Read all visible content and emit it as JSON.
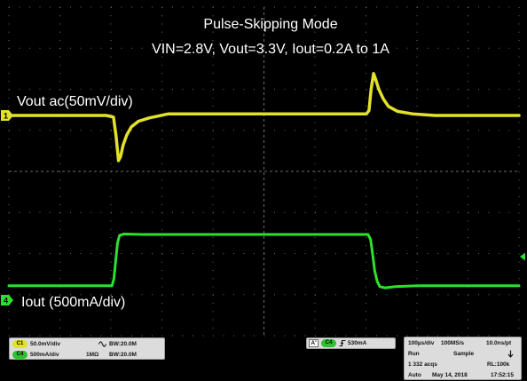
{
  "chart_data": {
    "type": "line",
    "title": "Pulse-Skipping Mode",
    "subtitle": "VIN=2.8V, Vout=3.3V, Iout=0.2A to 1A",
    "xlabel": "",
    "ylabel": "",
    "grid": true,
    "xlim": [
      0,
      1000
    ],
    "trigger_level": 530,
    "series": [
      {
        "name": "Vout ac(50mV/div)",
        "color": "#e2e22a",
        "scale_per_div": 50,
        "x": [
          0,
          191,
          205,
          210,
          215,
          219,
          224,
          231,
          240,
          254,
          275,
          313,
          504,
          701,
          706,
          710,
          715,
          719,
          725,
          734,
          744,
          762,
          791,
          835,
          1000
        ],
        "y": [
          0,
          0,
          -2,
          -25,
          -55,
          -50,
          -36,
          -24,
          -14,
          -7,
          -3,
          2,
          2,
          2,
          6,
          32,
          51,
          44,
          32,
          20,
          11,
          5,
          2,
          0,
          0
        ]
      },
      {
        "name": "Iout (500mA/div)",
        "color": "#2ee02e",
        "scale_per_div": 500,
        "x": [
          0,
          202,
          206,
          210,
          213,
          217,
          226,
          261,
          504,
          704,
          709,
          713,
          717,
          722,
          727,
          737,
          757,
          800,
          1000
        ],
        "y": [
          175,
          175,
          260,
          520,
          700,
          790,
          805,
          800,
          800,
          800,
          740,
          560,
          360,
          230,
          165,
          150,
          165,
          175,
          175
        ]
      }
    ]
  },
  "channel_markers": {
    "ch1": "1",
    "ch4": "4"
  },
  "colors": {
    "background": "#000000",
    "grid": "#6a6a6a",
    "text": "#ffffff",
    "status_box": "#dcdcdc"
  },
  "status": {
    "ch1": {
      "badge": "C1",
      "scale": "50.0mV/div",
      "coupling_icon": "ac-coupling-icon",
      "bandwidth": "BW:20.0M"
    },
    "ch4": {
      "badge": "C4",
      "scale": "500mA/div",
      "impedance": "1MΩ",
      "bandwidth": "BW:20.0M"
    },
    "trigger": {
      "label": "A'",
      "source": "C4",
      "slope_icon": "rising-edge-icon",
      "level": "530mA"
    },
    "acquisition": {
      "timebase": "100µs/div",
      "sample_rate": "100MS/s",
      "resolution": "10.0ns/pt",
      "state": "Run",
      "mode": "Sample",
      "state_icon": "down-arrow-icon",
      "count": "1 332 acqs",
      "record_length": "RL:100k",
      "trigger_mode": "Auto",
      "date": "May 14, 2018",
      "time": "17:52:15"
    }
  }
}
